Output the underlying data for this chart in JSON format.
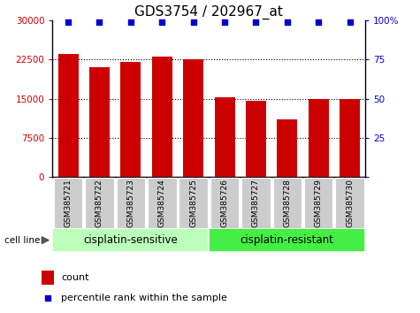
{
  "title": "GDS3754 / 202967_at",
  "samples": [
    "GSM385721",
    "GSM385722",
    "GSM385723",
    "GSM385724",
    "GSM385725",
    "GSM385726",
    "GSM385727",
    "GSM385728",
    "GSM385729",
    "GSM385730"
  ],
  "counts": [
    23500,
    21000,
    22000,
    23000,
    22500,
    15200,
    14500,
    11000,
    15000,
    15000
  ],
  "percentile_ranks": [
    99,
    99,
    99,
    99,
    99,
    99,
    99,
    99,
    99,
    99
  ],
  "bar_color": "#cc0000",
  "dot_color": "#0000cc",
  "ylim_left": [
    0,
    30000
  ],
  "ylim_right": [
    0,
    100
  ],
  "yticks_left": [
    0,
    7500,
    15000,
    22500,
    30000
  ],
  "yticks_right": [
    0,
    25,
    50,
    75,
    100
  ],
  "groups": [
    {
      "label": "cisplatin-sensitive",
      "start": 0,
      "end": 5,
      "color": "#bbffbb"
    },
    {
      "label": "cisplatin-resistant",
      "start": 5,
      "end": 10,
      "color": "#44ee44"
    }
  ],
  "group_label": "cell line",
  "legend_count_label": "count",
  "legend_pct_label": "percentile rank within the sample",
  "background_color": "#ffffff",
  "tick_label_bg": "#cccccc",
  "title_fontsize": 11,
  "tick_fontsize": 7.5,
  "label_fontsize": 6.5,
  "group_fontsize": 8.5
}
